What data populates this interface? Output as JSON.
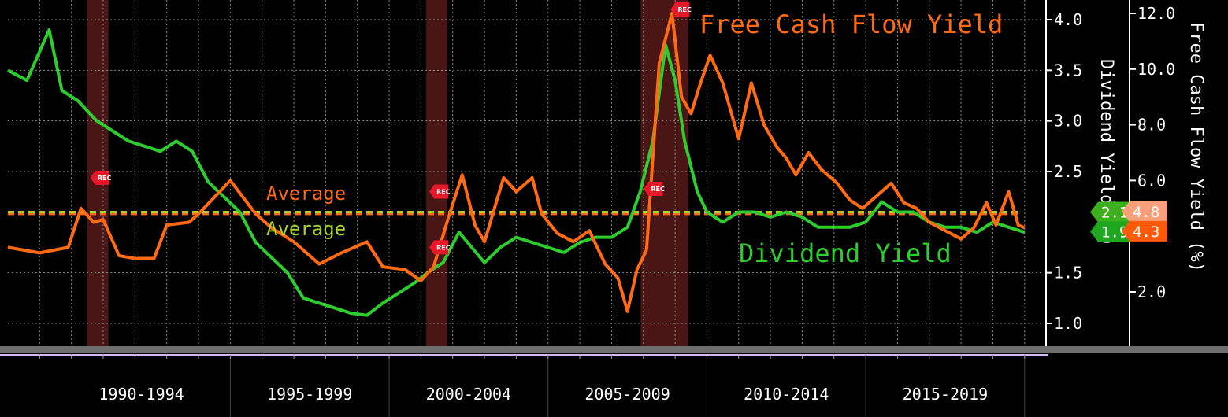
{
  "chart_data": {
    "type": "line",
    "x_range": [
      "1988-01",
      "2020-06"
    ],
    "periods": [
      "1990-1994",
      "1995-1999",
      "2000-2004",
      "2005-2009",
      "2010-2014",
      "2015-2019"
    ],
    "recessions": [
      {
        "start": "1990-07",
        "end": "1991-03"
      },
      {
        "start": "2001-03",
        "end": "2001-11"
      },
      {
        "start": "2007-12",
        "end": "2009-06"
      }
    ],
    "rec_label": "REC",
    "y_left": {
      "title": "Dividend Yield (%)",
      "range": [
        0.85,
        4.2
      ],
      "ticks": [
        "4.0",
        "3.5",
        "3.0",
        "2.5",
        "1.5",
        "1.0"
      ]
    },
    "y_right": {
      "title": "Free Cash Flow Yield (%)",
      "range": [
        0.25,
        12.4
      ],
      "ticks": [
        "12.0",
        "10.0",
        "8.0",
        "6.0",
        "2.0"
      ]
    },
    "series": [
      {
        "name": "Free Cash Flow Yield",
        "axis": "right",
        "color": "#ff6a13",
        "average": 4.8,
        "average_label": "Average",
        "last_label": "4.3",
        "avg_tag_label": "4.8",
        "x": [
          1988.0,
          1989.0,
          1989.9,
          1990.3,
          1990.7,
          1991.0,
          1991.5,
          1992.0,
          1992.6,
          1993.0,
          1993.7,
          1994.0,
          1995.0,
          1995.8,
          1996.3,
          1997.0,
          1997.8,
          1998.5,
          1999.3,
          1999.8,
          2000.5,
          2001.0,
          2001.4,
          2001.9,
          2002.3,
          2002.7,
          2003.0,
          2003.6,
          2004.0,
          2004.5,
          2004.8,
          2005.3,
          2005.8,
          2006.3,
          2006.8,
          2007.2,
          2007.5,
          2007.8,
          2008.1,
          2008.5,
          2008.9,
          2009.2,
          2009.5,
          2009.8,
          2010.1,
          2010.5,
          2010.8,
          2011.0,
          2011.4,
          2011.8,
          2012.2,
          2012.5,
          2012.8,
          2013.2,
          2013.6,
          2014.1,
          2014.5,
          2014.9,
          2015.3,
          2015.8,
          2016.2,
          2016.6,
          2017.0,
          2017.5,
          2018.0,
          2018.4,
          2018.8,
          2019.1,
          2019.5,
          2019.8,
          2020.0
        ],
        "y": [
          3.6,
          3.4,
          3.6,
          5.0,
          4.5,
          4.6,
          3.3,
          3.2,
          3.2,
          4.4,
          4.5,
          4.8,
          6.0,
          4.8,
          4.3,
          3.8,
          3.0,
          3.4,
          3.8,
          2.9,
          2.8,
          2.4,
          2.9,
          4.8,
          6.2,
          4.4,
          3.8,
          6.1,
          5.6,
          6.1,
          4.8,
          4.1,
          3.8,
          4.2,
          3.0,
          2.5,
          1.3,
          2.8,
          3.5,
          10.2,
          12.0,
          9.0,
          8.4,
          9.5,
          10.5,
          9.5,
          8.3,
          7.5,
          9.5,
          8.0,
          7.2,
          6.8,
          6.2,
          7.0,
          6.4,
          5.9,
          5.3,
          5.0,
          5.4,
          5.9,
          5.2,
          5.0,
          4.5,
          4.2,
          3.9,
          4.3,
          5.2,
          4.4,
          5.6,
          4.4,
          4.3
        ]
      },
      {
        "name": "Dividend Yield",
        "axis": "left",
        "color": "#2ecc2e",
        "average": 2.1,
        "average_label": "Average",
        "last_label": "1.9",
        "avg_tag_label": "2.1",
        "x": [
          1988.0,
          1988.6,
          1989.3,
          1989.7,
          1990.2,
          1990.8,
          1991.3,
          1991.8,
          1992.3,
          1992.8,
          1993.3,
          1993.8,
          1994.3,
          1994.8,
          1995.3,
          1995.8,
          1996.3,
          1996.8,
          1997.3,
          1997.8,
          1998.3,
          1998.8,
          1999.3,
          1999.8,
          2000.3,
          2000.8,
          2001.2,
          2001.7,
          2002.2,
          2002.6,
          2003.0,
          2003.5,
          2004.0,
          2004.5,
          2005.0,
          2005.5,
          2006.0,
          2006.5,
          2007.0,
          2007.5,
          2007.9,
          2008.3,
          2008.7,
          2009.0,
          2009.3,
          2009.7,
          2010.0,
          2010.5,
          2011.0,
          2011.5,
          2012.0,
          2012.5,
          2013.0,
          2013.5,
          2014.0,
          2014.5,
          2015.0,
          2015.5,
          2016.0,
          2016.5,
          2017.0,
          2017.5,
          2018.0,
          2018.5,
          2019.0,
          2019.5,
          2020.0
        ],
        "y": [
          3.5,
          3.4,
          3.9,
          3.3,
          3.2,
          3.0,
          2.9,
          2.8,
          2.75,
          2.7,
          2.8,
          2.7,
          2.4,
          2.25,
          2.1,
          1.8,
          1.65,
          1.5,
          1.25,
          1.2,
          1.15,
          1.1,
          1.08,
          1.2,
          1.3,
          1.4,
          1.5,
          1.6,
          1.9,
          1.75,
          1.6,
          1.75,
          1.85,
          1.8,
          1.75,
          1.7,
          1.8,
          1.85,
          1.85,
          1.95,
          2.3,
          2.8,
          3.75,
          3.4,
          2.8,
          2.3,
          2.1,
          2.0,
          2.1,
          2.1,
          2.05,
          2.1,
          2.05,
          1.95,
          1.95,
          1.95,
          2.0,
          2.2,
          2.1,
          2.1,
          2.0,
          1.95,
          1.95,
          1.9,
          2.0,
          1.95,
          1.9
        ]
      }
    ],
    "grid": true,
    "legend": "inline labels"
  }
}
